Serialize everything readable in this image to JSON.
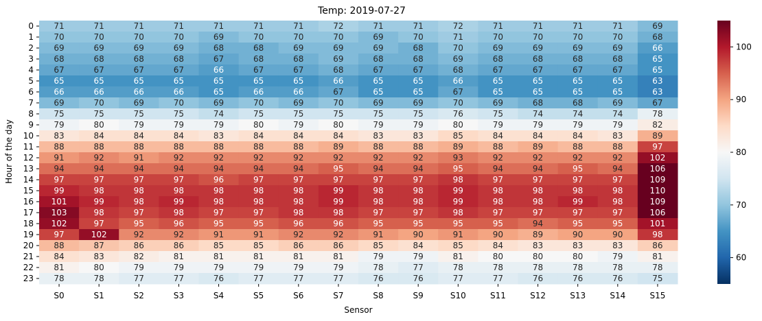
{
  "chart_data": {
    "type": "heatmap",
    "title": "Temp: 2019-07-27",
    "xlabel": "Sensor",
    "ylabel": "Hour of the day",
    "x": [
      "S0",
      "S1",
      "S2",
      "S3",
      "S4",
      "S5",
      "S6",
      "S7",
      "S8",
      "S9",
      "S10",
      "S11",
      "S12",
      "S13",
      "S14",
      "S15"
    ],
    "y": [
      "0",
      "1",
      "2",
      "3",
      "4",
      "5",
      "6",
      "7",
      "8",
      "9",
      "10",
      "11",
      "12",
      "13",
      "14",
      "15",
      "16",
      "17",
      "18",
      "19",
      "20",
      "21",
      "22",
      "23"
    ],
    "values": [
      [
        71,
        71,
        71,
        71,
        71,
        71,
        71,
        72,
        71,
        71,
        72,
        71,
        71,
        71,
        71,
        69
      ],
      [
        70,
        70,
        70,
        70,
        69,
        70,
        70,
        70,
        69,
        70,
        71,
        70,
        70,
        70,
        70,
        68
      ],
      [
        69,
        69,
        69,
        69,
        68,
        68,
        69,
        69,
        69,
        68,
        70,
        69,
        69,
        69,
        69,
        66
      ],
      [
        68,
        68,
        68,
        68,
        67,
        68,
        68,
        69,
        68,
        68,
        69,
        68,
        68,
        68,
        68,
        65
      ],
      [
        67,
        67,
        67,
        67,
        66,
        67,
        67,
        68,
        67,
        67,
        68,
        67,
        67,
        67,
        67,
        65
      ],
      [
        65,
        65,
        65,
        65,
        65,
        65,
        65,
        66,
        65,
        65,
        66,
        65,
        65,
        65,
        65,
        63
      ],
      [
        66,
        66,
        66,
        66,
        65,
        66,
        66,
        67,
        65,
        65,
        67,
        65,
        65,
        65,
        65,
        63
      ],
      [
        69,
        70,
        69,
        70,
        69,
        70,
        69,
        70,
        69,
        69,
        70,
        69,
        68,
        68,
        69,
        67
      ],
      [
        75,
        75,
        75,
        75,
        74,
        75,
        75,
        75,
        75,
        75,
        76,
        75,
        74,
        74,
        74,
        78
      ],
      [
        79,
        80,
        79,
        79,
        79,
        80,
        79,
        80,
        79,
        79,
        80,
        79,
        79,
        79,
        79,
        82
      ],
      [
        83,
        84,
        84,
        84,
        83,
        84,
        84,
        84,
        83,
        83,
        85,
        84,
        84,
        84,
        83,
        89
      ],
      [
        88,
        88,
        88,
        88,
        88,
        88,
        88,
        89,
        88,
        88,
        89,
        88,
        89,
        88,
        88,
        97
      ],
      [
        91,
        92,
        91,
        92,
        92,
        92,
        92,
        92,
        92,
        92,
        93,
        92,
        92,
        92,
        92,
        102
      ],
      [
        94,
        94,
        94,
        94,
        94,
        94,
        94,
        95,
        94,
        94,
        95,
        94,
        94,
        95,
        94,
        106
      ],
      [
        97,
        97,
        97,
        97,
        96,
        97,
        97,
        97,
        97,
        97,
        98,
        97,
        97,
        97,
        97,
        109
      ],
      [
        99,
        98,
        98,
        98,
        98,
        98,
        98,
        99,
        98,
        98,
        99,
        98,
        98,
        98,
        98,
        110
      ],
      [
        101,
        99,
        98,
        99,
        98,
        98,
        98,
        99,
        98,
        98,
        99,
        98,
        98,
        99,
        98,
        109
      ],
      [
        103,
        98,
        97,
        98,
        97,
        97,
        98,
        98,
        97,
        97,
        98,
        97,
        97,
        97,
        97,
        106
      ],
      [
        102,
        97,
        95,
        96,
        95,
        95,
        96,
        96,
        95,
        95,
        95,
        95,
        94,
        95,
        95,
        101
      ],
      [
        97,
        102,
        92,
        92,
        91,
        91,
        92,
        92,
        91,
        90,
        91,
        90,
        89,
        90,
        90,
        98
      ],
      [
        88,
        87,
        86,
        86,
        85,
        85,
        86,
        86,
        85,
        84,
        85,
        84,
        83,
        83,
        83,
        86
      ],
      [
        84,
        83,
        82,
        81,
        81,
        81,
        81,
        81,
        79,
        79,
        81,
        80,
        80,
        80,
        79,
        81
      ],
      [
        81,
        80,
        79,
        79,
        79,
        79,
        79,
        79,
        78,
        77,
        78,
        78,
        78,
        78,
        78,
        78
      ],
      [
        78,
        78,
        77,
        77,
        76,
        77,
        77,
        77,
        76,
        76,
        77,
        77,
        76,
        76,
        76,
        75
      ]
    ],
    "vmin": 55,
    "vmax": 105,
    "colormap": "RdBu_r",
    "colorbar_ticks": [
      60,
      70,
      80,
      90,
      100
    ],
    "annotated": true,
    "legend": "colorbar-right"
  }
}
